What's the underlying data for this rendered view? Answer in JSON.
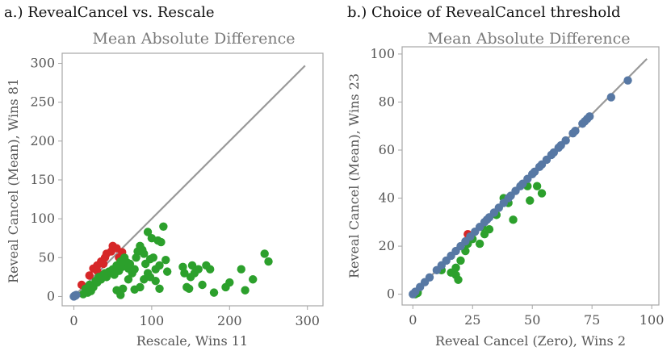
{
  "colors": {
    "red": "#d62728",
    "green": "#2ca02c",
    "blue": "#5778a4",
    "diag": "#999999"
  },
  "chart_data": [
    {
      "type": "scatter",
      "panel_title": "a.) RevealCancel vs. Rescale",
      "title": "Mean Absolute Difference",
      "xlabel": "Rescale, Wins 11",
      "ylabel": "Reveal Cancel (Mean), Wins 81",
      "xlim": [
        -15,
        320
      ],
      "ylim": [
        -12,
        313
      ],
      "xticks": [
        0,
        100,
        200,
        300
      ],
      "yticks": [
        0,
        50,
        100,
        150,
        200,
        250,
        300
      ],
      "diagonal": [
        0,
        297
      ],
      "series": [
        {
          "name": "red",
          "color": "#d62728",
          "points": [
            [
              10,
              15
            ],
            [
              20,
              27
            ],
            [
              25,
              36
            ],
            [
              30,
              40
            ],
            [
              35,
              45
            ],
            [
              40,
              50
            ],
            [
              42,
              55
            ],
            [
              48,
              58
            ],
            [
              50,
              65
            ],
            [
              55,
              62
            ],
            [
              58,
              50
            ],
            [
              62,
              57
            ],
            [
              30,
              33
            ],
            [
              38,
              42
            ]
          ]
        },
        {
          "name": "green",
          "color": "#2ca02c",
          "points": [
            [
              12,
              3
            ],
            [
              15,
              10
            ],
            [
              18,
              5
            ],
            [
              20,
              15
            ],
            [
              22,
              7
            ],
            [
              25,
              12
            ],
            [
              28,
              20
            ],
            [
              30,
              18
            ],
            [
              32,
              25
            ],
            [
              35,
              22
            ],
            [
              38,
              28
            ],
            [
              40,
              30
            ],
            [
              42,
              25
            ],
            [
              45,
              32
            ],
            [
              48,
              30
            ],
            [
              50,
              35
            ],
            [
              52,
              28
            ],
            [
              55,
              40
            ],
            [
              58,
              33
            ],
            [
              60,
              45
            ],
            [
              62,
              38
            ],
            [
              65,
              50
            ],
            [
              68,
              44
            ],
            [
              70,
              36
            ],
            [
              72,
              42
            ],
            [
              75,
              30
            ],
            [
              78,
              35
            ],
            [
              80,
              50
            ],
            [
              82,
              58
            ],
            [
              85,
              65
            ],
            [
              88,
              60
            ],
            [
              90,
              55
            ],
            [
              92,
              42
            ],
            [
              95,
              83
            ],
            [
              98,
              48
            ],
            [
              100,
              75
            ],
            [
              102,
              50
            ],
            [
              105,
              35
            ],
            [
              108,
              72
            ],
            [
              110,
              40
            ],
            [
              112,
              70
            ],
            [
              115,
              90
            ],
            [
              118,
              47
            ],
            [
              120,
              32
            ],
            [
              55,
              8
            ],
            [
              60,
              2
            ],
            [
              63,
              10
            ],
            [
              70,
              22
            ],
            [
              78,
              9
            ],
            [
              85,
              12
            ],
            [
              90,
              22
            ],
            [
              95,
              30
            ],
            [
              98,
              25
            ],
            [
              105,
              20
            ],
            [
              110,
              10
            ],
            [
              140,
              38
            ],
            [
              142,
              30
            ],
            [
              145,
              12
            ],
            [
              150,
              25
            ],
            [
              152,
              40
            ],
            [
              155,
              30
            ],
            [
              160,
              35
            ],
            [
              165,
              15
            ],
            [
              170,
              40
            ],
            [
              175,
              35
            ],
            [
              180,
              5
            ],
            [
              195,
              12
            ],
            [
              200,
              18
            ],
            [
              220,
              8
            ],
            [
              215,
              35
            ],
            [
              230,
              22
            ],
            [
              245,
              55
            ],
            [
              250,
              45
            ],
            [
              148,
              10
            ]
          ]
        },
        {
          "name": "blue",
          "color": "#5778a4",
          "points": [
            [
              0,
              0
            ],
            [
              1,
              1
            ],
            [
              2,
              1
            ],
            [
              3,
              2
            ]
          ]
        }
      ]
    },
    {
      "type": "scatter",
      "panel_title": "b.) Choice of RevealCancel threshold",
      "title": "Mean Absolute Difference",
      "xlabel": "Reveal Cancel (Zero), Wins 2",
      "ylabel": "Reveal Cancel (Mean), Wins 23",
      "xlim": [
        -4.5,
        103
      ],
      "ylim": [
        -4.5,
        103
      ],
      "xticks": [
        0,
        25,
        50,
        75,
        100
      ],
      "yticks": [
        0,
        20,
        40,
        60,
        80,
        100
      ],
      "diagonal": [
        0,
        98
      ],
      "series": [
        {
          "name": "green",
          "color": "#2ca02c",
          "points": [
            [
              1,
              0
            ],
            [
              2,
              1
            ],
            [
              2,
              0.5
            ],
            [
              12,
              10
            ],
            [
              16,
              9
            ],
            [
              18,
              8
            ],
            [
              18,
              11
            ],
            [
              19,
              6
            ],
            [
              20,
              14
            ],
            [
              22,
              18
            ],
            [
              23,
              21
            ],
            [
              25,
              23
            ],
            [
              28,
              21
            ],
            [
              29,
              28
            ],
            [
              30,
              25
            ],
            [
              32,
              27
            ],
            [
              35,
              33
            ],
            [
              38,
              40
            ],
            [
              40,
              38
            ],
            [
              42,
              31
            ],
            [
              48,
              45
            ],
            [
              49,
              39
            ],
            [
              52,
              45
            ],
            [
              54,
              42
            ]
          ]
        },
        {
          "name": "red",
          "color": "#d62728",
          "points": [
            [
              23,
              25
            ]
          ]
        },
        {
          "name": "blue",
          "color": "#5778a4",
          "points": [
            [
              0,
              0
            ],
            [
              1,
              1
            ],
            [
              3,
              3
            ],
            [
              5,
              5
            ],
            [
              7,
              7
            ],
            [
              10,
              10
            ],
            [
              12,
              12
            ],
            [
              14,
              14
            ],
            [
              16,
              16
            ],
            [
              18,
              18
            ],
            [
              20,
              20
            ],
            [
              22,
              22
            ],
            [
              24,
              24
            ],
            [
              26,
              26
            ],
            [
              28,
              28
            ],
            [
              30,
              30
            ],
            [
              31,
              31
            ],
            [
              32,
              32
            ],
            [
              34,
              34
            ],
            [
              36,
              36
            ],
            [
              38,
              38
            ],
            [
              40,
              40
            ],
            [
              41,
              41
            ],
            [
              43,
              43
            ],
            [
              45,
              45
            ],
            [
              46,
              46
            ],
            [
              48,
              48
            ],
            [
              50,
              50
            ],
            [
              51,
              51
            ],
            [
              53,
              53
            ],
            [
              54,
              54
            ],
            [
              56,
              56
            ],
            [
              58,
              58
            ],
            [
              59,
              59
            ],
            [
              61,
              61
            ],
            [
              62,
              62
            ],
            [
              64,
              64
            ],
            [
              67,
              67
            ],
            [
              68,
              68
            ],
            [
              71,
              71
            ],
            [
              72,
              72
            ],
            [
              73,
              73
            ],
            [
              74,
              74
            ],
            [
              83,
              82
            ],
            [
              90,
              89
            ]
          ]
        }
      ]
    }
  ]
}
